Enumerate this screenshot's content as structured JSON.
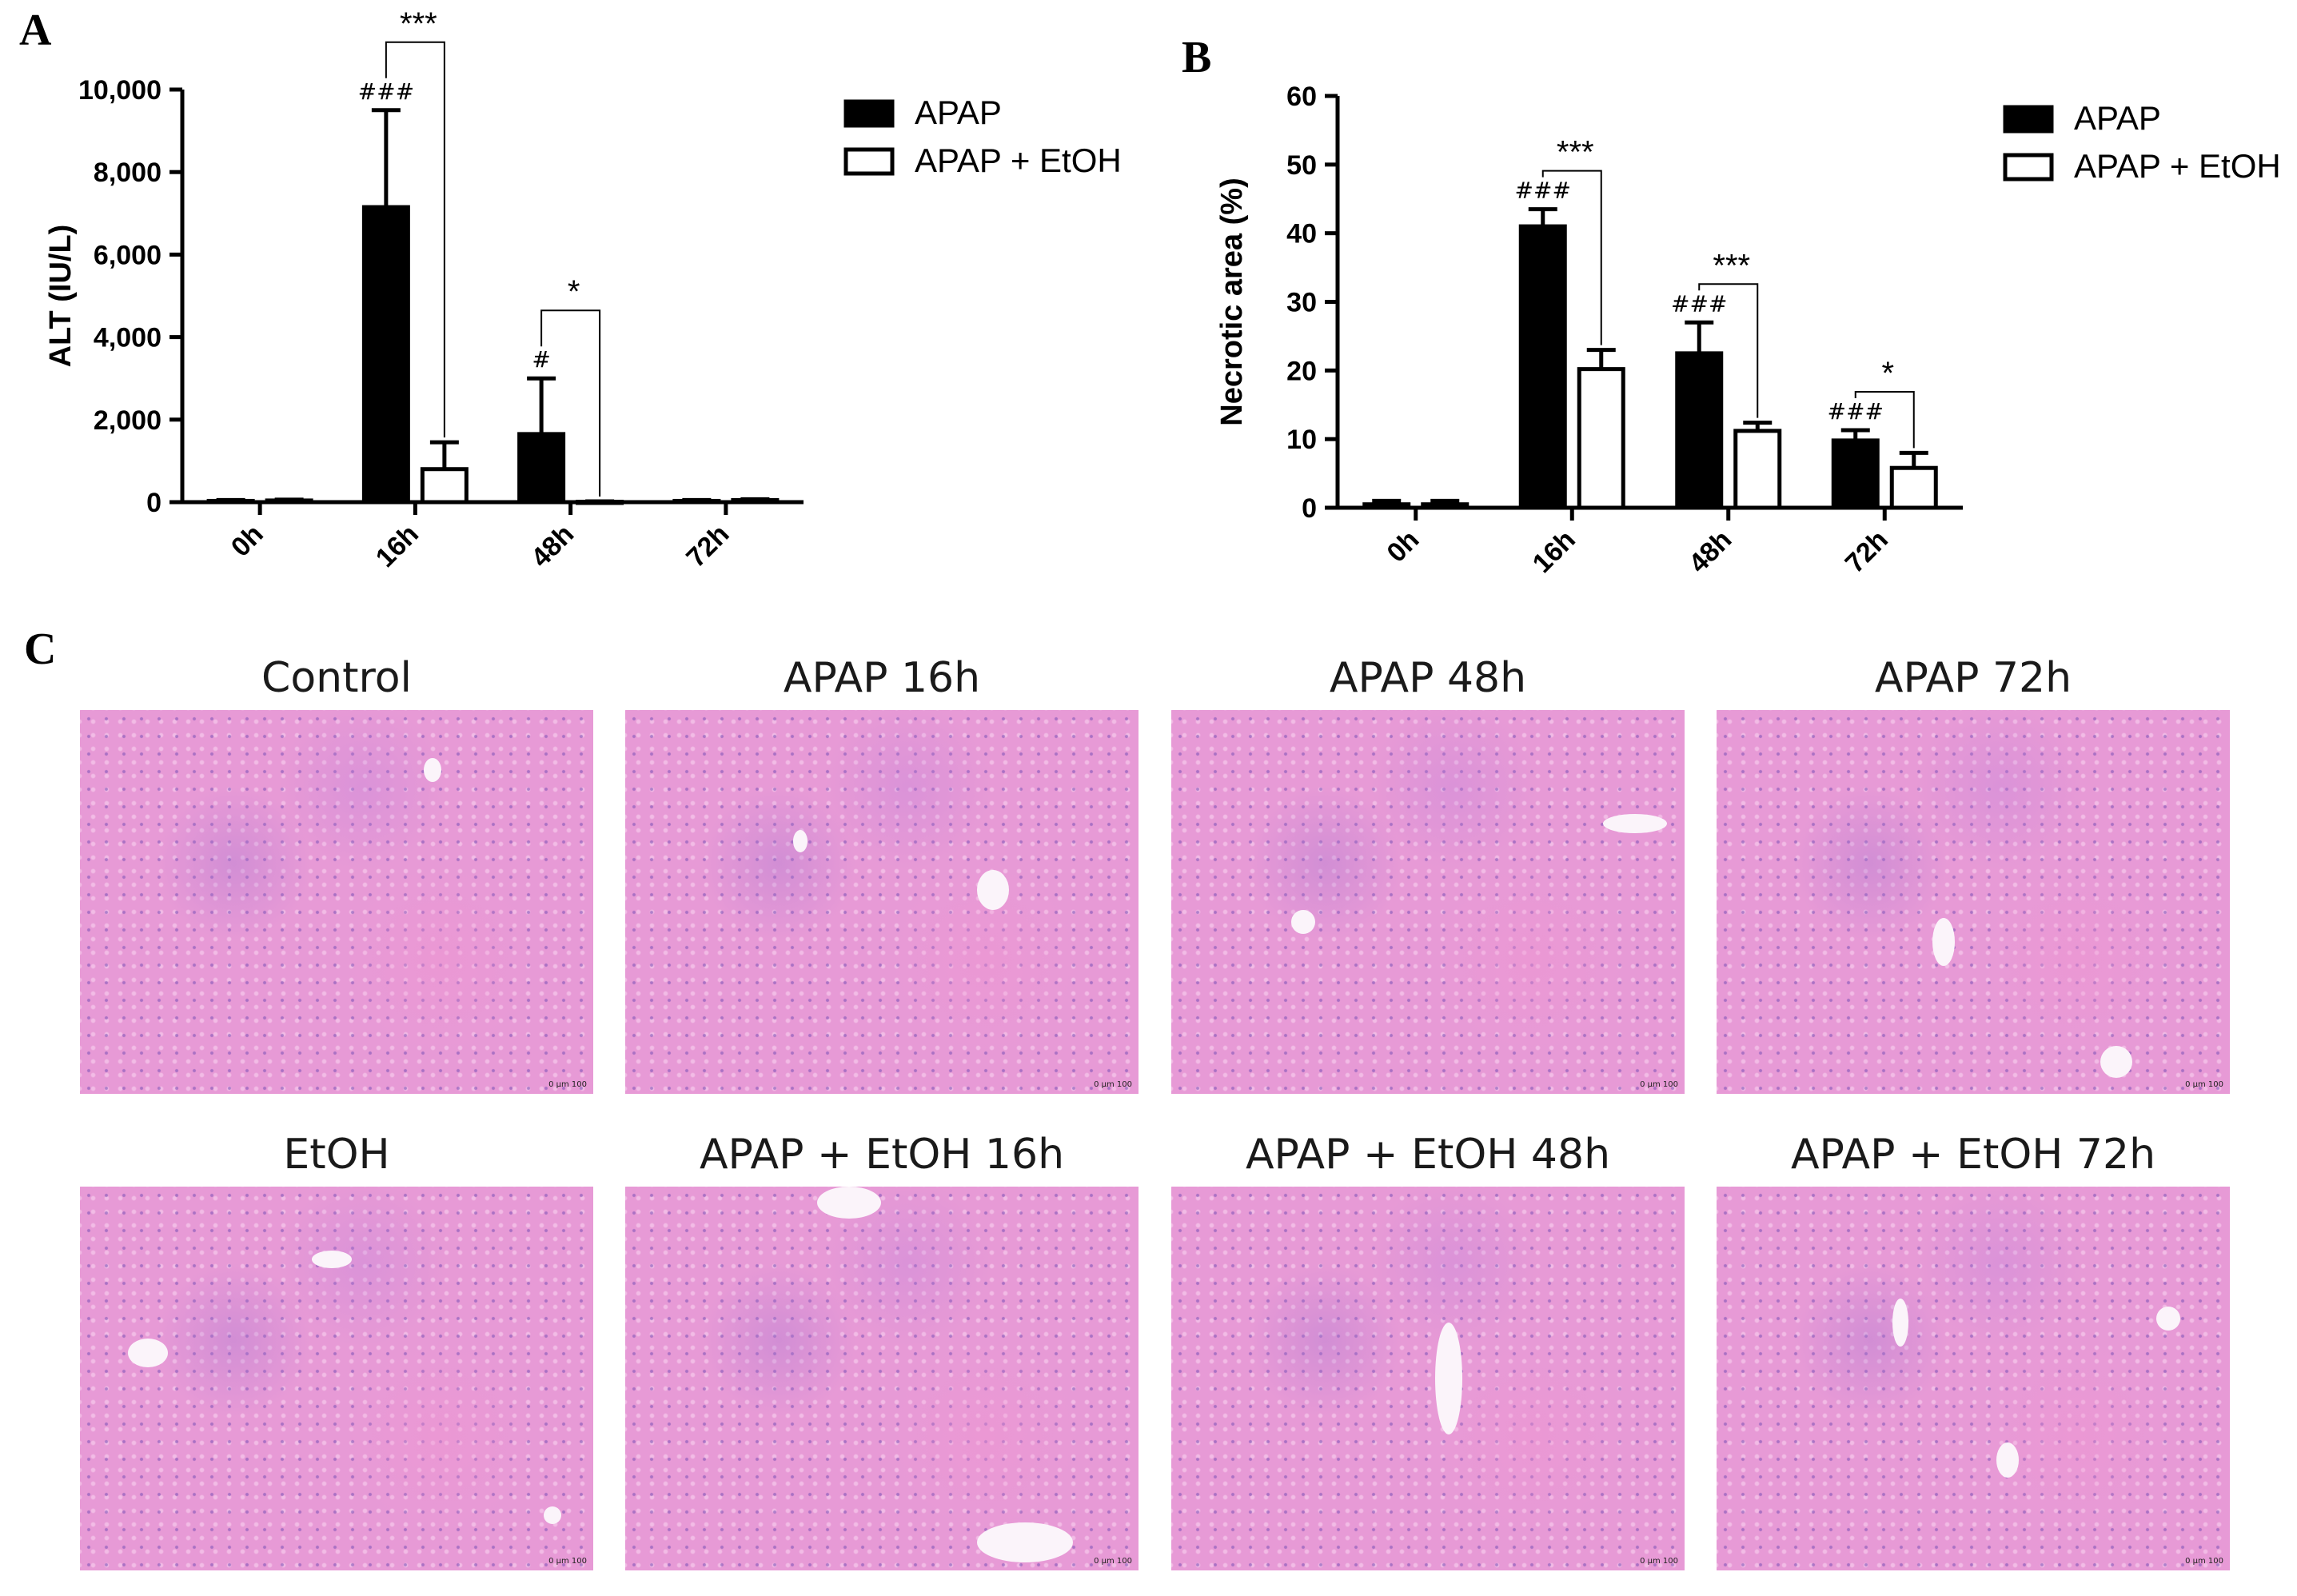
{
  "panels": {
    "a": "A",
    "b": "B",
    "c": "C"
  },
  "legend_series": [
    "APAP",
    "APAP + EtOH"
  ],
  "chart_data": [
    {
      "type": "bar",
      "categories": [
        "0h",
        "16h",
        "48h",
        "72h"
      ],
      "ylabel": "ALT (IU/L)",
      "ylim": [
        0,
        10000
      ],
      "yticks": [
        0,
        2000,
        4000,
        6000,
        8000,
        10000
      ],
      "ytick_labels": [
        "0",
        "2,000",
        "4,000",
        "6,000",
        "8,000",
        "10,000"
      ],
      "legend": "top-right",
      "series": [
        {
          "name": "APAP",
          "values": [
            30,
            7150,
            1650,
            30
          ],
          "errors": [
            20,
            2350,
            1350,
            20
          ],
          "fill": "#000000"
        },
        {
          "name": "APAP + EtOH",
          "values": [
            40,
            800,
            10,
            50
          ],
          "errors": [
            20,
            650,
            10,
            20
          ],
          "fill": "#ffffff"
        }
      ],
      "markers": [
        {
          "category": "16h",
          "text": "###"
        },
        {
          "category": "48h",
          "text": "#"
        }
      ],
      "significance": [
        {
          "category": "16h",
          "text": "***"
        },
        {
          "category": "48h",
          "text": "*"
        }
      ]
    },
    {
      "type": "bar",
      "categories": [
        "0h",
        "16h",
        "48h",
        "72h"
      ],
      "ylabel": "Necrotic area (%)",
      "ylim": [
        0,
        60
      ],
      "yticks": [
        0,
        10,
        20,
        30,
        40,
        50,
        60
      ],
      "ytick_labels": [
        "0",
        "10",
        "20",
        "30",
        "40",
        "50",
        "60"
      ],
      "legend": "top-right",
      "series": [
        {
          "name": "APAP",
          "values": [
            0.5,
            41,
            22.5,
            9.8
          ],
          "errors": [
            0.5,
            2.5,
            4.5,
            1.5
          ],
          "fill": "#000000"
        },
        {
          "name": "APAP + EtOH",
          "values": [
            0.5,
            20.2,
            11.2,
            5.8
          ],
          "errors": [
            0.5,
            2.8,
            1.2,
            2.2
          ],
          "fill": "#ffffff"
        }
      ],
      "markers": [
        {
          "category": "16h",
          "text": "###"
        },
        {
          "category": "48h",
          "text": "###"
        },
        {
          "category": "72h",
          "text": "###"
        }
      ],
      "significance": [
        {
          "category": "16h",
          "text": "***"
        },
        {
          "category": "48h",
          "text": "***"
        },
        {
          "category": "72h",
          "text": "*"
        }
      ]
    }
  ],
  "micrographs": [
    {
      "title": "Control",
      "scale": "0   μm   100"
    },
    {
      "title": "APAP 16h",
      "scale": "0   μm   100"
    },
    {
      "title": "APAP 48h",
      "scale": "0   μm   100"
    },
    {
      "title": "APAP 72h",
      "scale": "0   μm   100"
    },
    {
      "title": "EtOH",
      "scale": "0   μm   100"
    },
    {
      "title": "APAP + EtOH 16h",
      "scale": "0   μm   100"
    },
    {
      "title": "APAP + EtOH 48h",
      "scale": "0   μm   100"
    },
    {
      "title": "APAP + EtOH 72h",
      "scale": "0   μm   100"
    }
  ]
}
